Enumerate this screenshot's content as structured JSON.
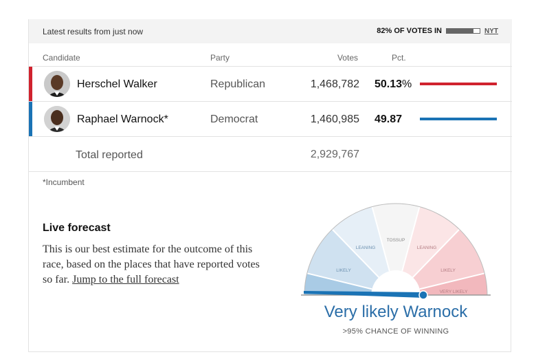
{
  "header": {
    "latest": "Latest results from just now",
    "votes_in": "82% OF VOTES IN",
    "votes_in_fraction": 0.82,
    "source": "NYT"
  },
  "columns": {
    "candidate": "Candidate",
    "party": "Party",
    "votes": "Votes",
    "pct": "Pct."
  },
  "candidates": [
    {
      "name": "Herschel Walker",
      "party": "Republican",
      "votes": "1,468,782",
      "pct": "50.13",
      "pct_symbol": "%",
      "share": 50.13,
      "color": "#d0222e"
    },
    {
      "name": "Raphael Warnock*",
      "party": "Democrat",
      "votes": "1,460,985",
      "pct": "49.87",
      "pct_symbol": "",
      "share": 49.87,
      "color": "#1a73b5"
    }
  ],
  "total": {
    "label": "Total reported",
    "votes": "2,929,767"
  },
  "footnote": "*Incumbent",
  "forecast": {
    "title": "Live forecast",
    "text": "This is our best estimate for the outcome of this race, based on the places that have reported votes so far. ",
    "link": "Jump to the full forecast",
    "gauge_labels": {
      "tossup": "TOSSUP",
      "leaning_left": "LEANING",
      "leaning_right": "LEANING",
      "likely_left": "LIKELY",
      "likely_right": "LIKELY",
      "very_likely_right": "VERY LIKELY"
    },
    "result": "Very likely Warnock",
    "chance": ">95% CHANCE OF WINNING"
  },
  "colors": {
    "republican": "#d0222e",
    "democrat": "#1a73b5",
    "result": "#2b6ea8"
  }
}
